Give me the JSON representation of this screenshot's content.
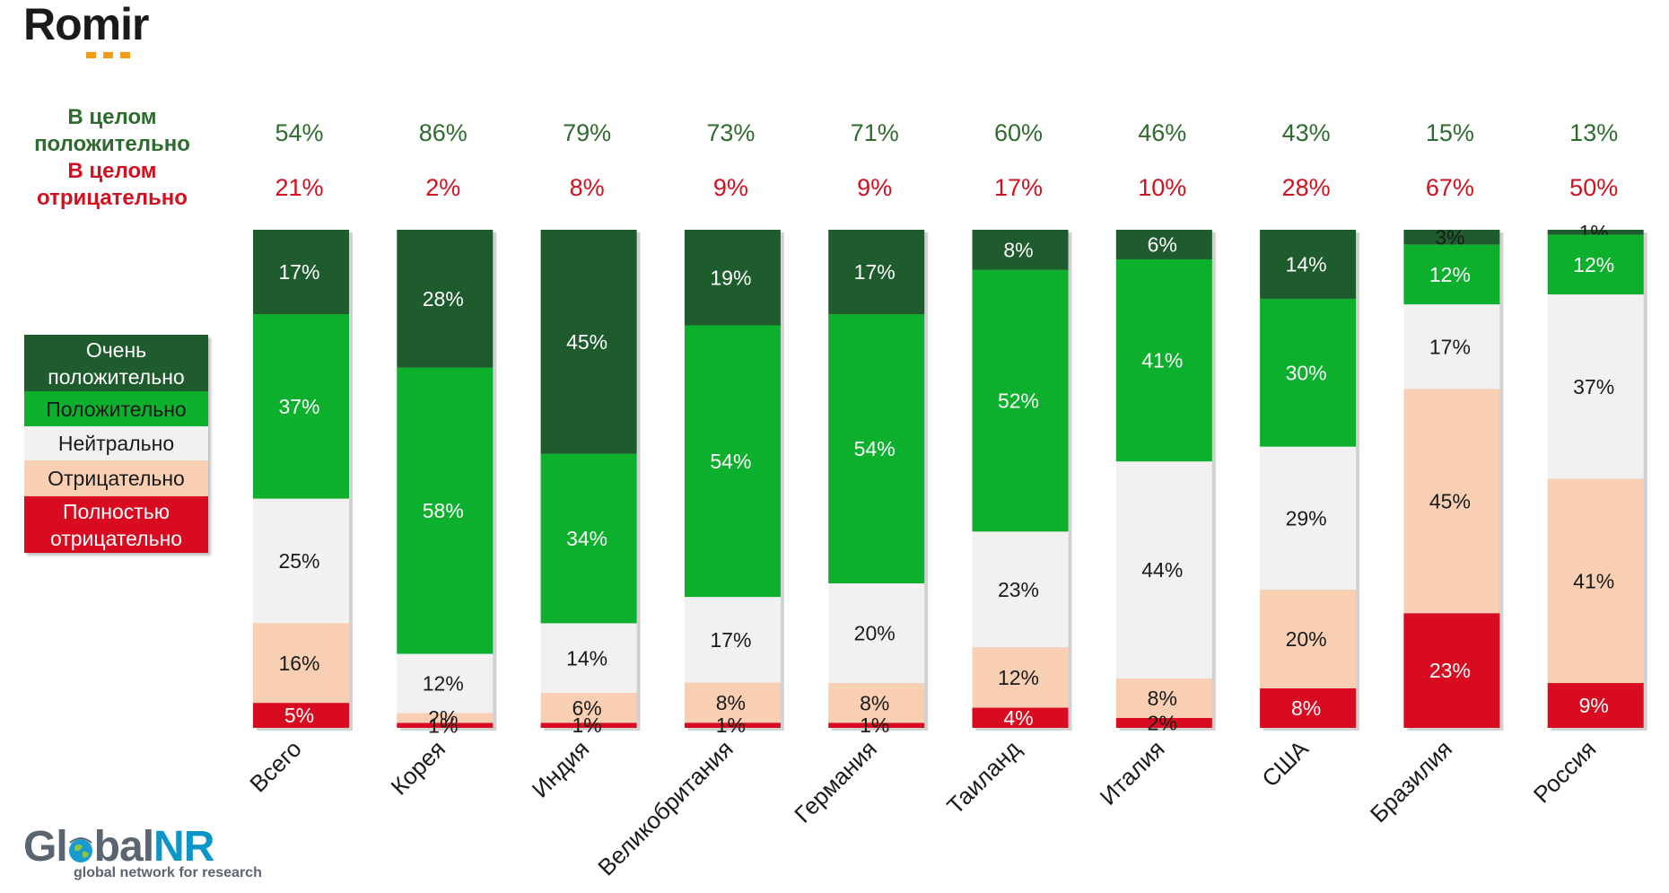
{
  "brand": {
    "name": "Romir"
  },
  "footer_brand": {
    "name_part1": "Gl",
    "name_part2": "bal",
    "name_part3": "NR",
    "tagline": "global network for research"
  },
  "summary_labels": {
    "positive": "В целом положительно",
    "negative": "В целом отрицательно"
  },
  "colors": {
    "very_positive": "#1e5b2d",
    "positive": "#0cb02d",
    "neutral": "#f1f1f1",
    "negative": "#f8cfb2",
    "very_negative": "#d90b20",
    "summary_positive": "#2e6b2e",
    "summary_negative": "#d3101f"
  },
  "legend": [
    {
      "key": "very_positive",
      "label": "Очень положительно"
    },
    {
      "key": "positive",
      "label": "Положительно"
    },
    {
      "key": "neutral",
      "label": "Нейтрально"
    },
    {
      "key": "negative",
      "label": "Отрицательно"
    },
    {
      "key": "very_negative",
      "label": "Полностью отрицательно"
    }
  ],
  "chart_data": {
    "type": "bar",
    "stacked": true,
    "normalized_to": 100,
    "categories": [
      "Всего",
      "Корея",
      "Индия",
      "Великобритания",
      "Германия",
      "Таиланд",
      "Италия",
      "США",
      "Бразилия",
      "Россия"
    ],
    "series": [
      {
        "name": "Очень положительно",
        "key": "very_positive",
        "values": [
          17,
          28,
          45,
          19,
          17,
          8,
          6,
          14,
          3,
          1
        ]
      },
      {
        "name": "Положительно",
        "key": "positive",
        "values": [
          37,
          58,
          34,
          54,
          54,
          52,
          41,
          30,
          12,
          12
        ]
      },
      {
        "name": "Нейтрально",
        "key": "neutral",
        "values": [
          25,
          12,
          14,
          17,
          20,
          23,
          44,
          29,
          17,
          37
        ]
      },
      {
        "name": "Отрицательно",
        "key": "negative",
        "values": [
          16,
          2,
          6,
          8,
          8,
          12,
          8,
          20,
          45,
          41
        ]
      },
      {
        "name": "Полностью отрицательно",
        "key": "very_negative",
        "values": [
          5,
          1,
          1,
          1,
          1,
          4,
          2,
          8,
          23,
          9
        ]
      }
    ],
    "totals": {
      "positive": [
        54,
        86,
        79,
        73,
        71,
        60,
        46,
        43,
        15,
        13
      ],
      "negative": [
        21,
        2,
        8,
        9,
        9,
        17,
        10,
        28,
        67,
        50
      ]
    },
    "value_suffix": "%"
  }
}
